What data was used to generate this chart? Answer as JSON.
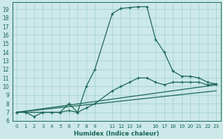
{
  "xlabel": "Humidex (Indice chaleur)",
  "bg_color": "#cce8e8",
  "grid_color": "#9dcfcf",
  "line_color": "#1a6655",
  "xlim": [
    -0.5,
    23.5
  ],
  "ylim": [
    6,
    19.8
  ],
  "yticks": [
    6,
    7,
    8,
    9,
    10,
    11,
    12,
    13,
    14,
    15,
    16,
    17,
    18,
    19
  ],
  "xtick_vals": [
    0,
    1,
    2,
    3,
    4,
    5,
    6,
    7,
    8,
    9,
    11,
    12,
    13,
    14,
    16,
    17,
    18,
    19,
    20,
    21,
    22,
    23
  ],
  "xtick_labels": [
    "0",
    "1",
    "2",
    "3",
    "4",
    "5",
    "6",
    "7",
    "8",
    "9",
    "11",
    "12",
    "13",
    "14",
    "16",
    "17",
    "18",
    "19",
    "20",
    "21",
    "22",
    "23"
  ],
  "line1_x": [
    0,
    1,
    2,
    3,
    4,
    5,
    6,
    7,
    8,
    9,
    11,
    12,
    13,
    14,
    15,
    16,
    17,
    18,
    19,
    20,
    21,
    22,
    23
  ],
  "line1_y": [
    7,
    7,
    6.5,
    7,
    7,
    7,
    8,
    7,
    10,
    12,
    18.5,
    19.1,
    19.2,
    19.3,
    19.3,
    15.5,
    14.0,
    11.8,
    11.2,
    11.2,
    11.0,
    10.5,
    10.3
  ],
  "line2_x": [
    0,
    3,
    5,
    6,
    7,
    8,
    9,
    11,
    12,
    13,
    14,
    15,
    16,
    17,
    18,
    19,
    20,
    21,
    22,
    23
  ],
  "line2_y": [
    7,
    7,
    7,
    7.2,
    7,
    7.5,
    8.0,
    9.5,
    10.0,
    10.5,
    11.0,
    11.0,
    10.5,
    10.2,
    10.5,
    10.5,
    10.5,
    10.5,
    10.2,
    10.3
  ],
  "line3_x": [
    0,
    23
  ],
  "line3_y": [
    7,
    10.2
  ],
  "line4_x": [
    0,
    23
  ],
  "line4_y": [
    7,
    9.5
  ]
}
